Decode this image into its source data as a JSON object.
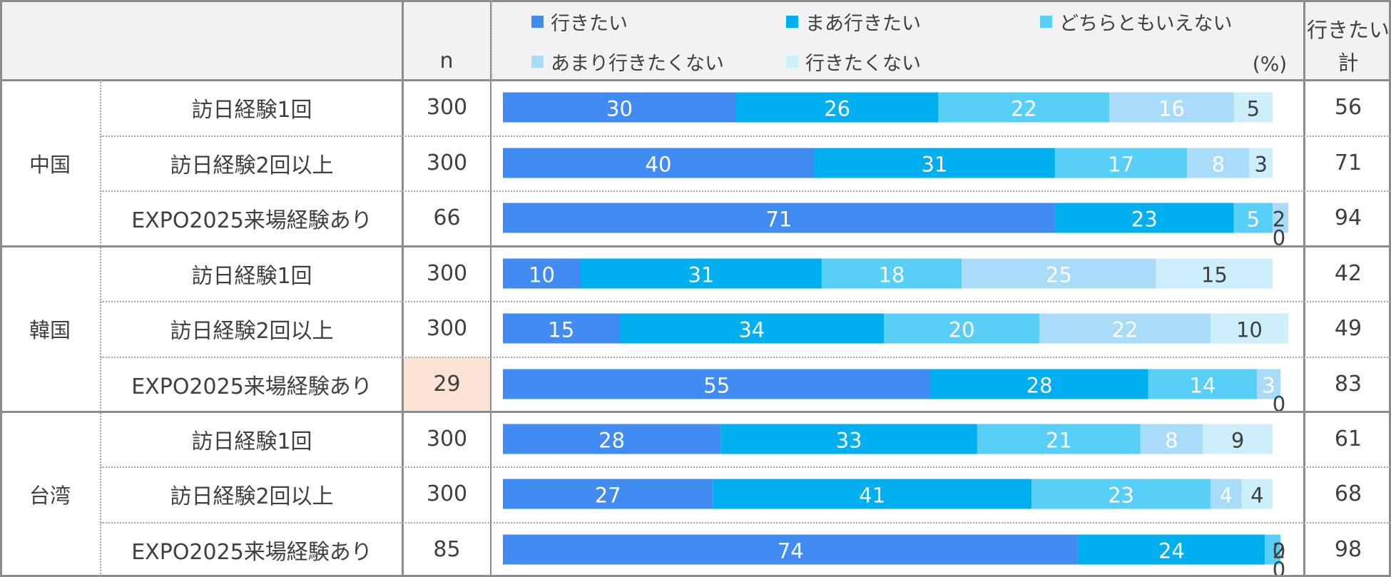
{
  "header": {
    "n_label": "n",
    "unit_label": "(%)",
    "total_label_line1": "行きたい",
    "total_label_line2": "計"
  },
  "legend": [
    {
      "label": "行きたい",
      "color": "#418cf2"
    },
    {
      "label": "まあ行きたい",
      "color": "#00aff0"
    },
    {
      "label": "どちらともいえない",
      "color": "#57cff6"
    },
    {
      "label": "あまり行きたくない",
      "color": "#a8dcf8"
    },
    {
      "label": "行きたくない",
      "color": "#cdeefb"
    }
  ],
  "groups": [
    {
      "country": "中国"
    },
    {
      "country": "韓国"
    },
    {
      "country": "台湾"
    }
  ],
  "rows": [
    {
      "label": "訪日経験1回",
      "n": "300",
      "total": "56",
      "highlight_n": false
    },
    {
      "label": "訪日経験2回以上",
      "n": "300",
      "total": "71",
      "highlight_n": false
    },
    {
      "label": "EXPO2025来場経験あり",
      "n": "66",
      "total": "94",
      "highlight_n": false
    },
    {
      "label": "訪日経験1回",
      "n": "300",
      "total": "42",
      "highlight_n": false
    },
    {
      "label": "訪日経験2回以上",
      "n": "300",
      "total": "49",
      "highlight_n": false
    },
    {
      "label": "EXPO2025来場経験あり",
      "n": "29",
      "total": "83",
      "highlight_n": true
    },
    {
      "label": "訪日経験1回",
      "n": "300",
      "total": "61",
      "highlight_n": false
    },
    {
      "label": "訪日経験2回以上",
      "n": "300",
      "total": "68",
      "highlight_n": false
    },
    {
      "label": "EXPO2025来場経験あり",
      "n": "85",
      "total": "98",
      "highlight_n": false
    }
  ],
  "chart_data": {
    "type": "bar",
    "orientation": "horizontal",
    "stacked": true,
    "unit": "(%)",
    "xlim": [
      0,
      100
    ],
    "categories": [
      "中国 訪日経験1回",
      "中国 訪日経験2回以上",
      "中国 EXPO2025来場経験あり",
      "韓国 訪日経験1回",
      "韓国 訪日経験2回以上",
      "韓国 EXPO2025来場経験あり",
      "台湾 訪日経験1回",
      "台湾 訪日経験2回以上",
      "台湾 EXPO2025来場経験あり"
    ],
    "series": [
      {
        "name": "行きたい",
        "color": "#418cf2",
        "label_color": "#ffffff",
        "values": [
          30,
          40,
          71,
          10,
          15,
          55,
          28,
          27,
          74
        ]
      },
      {
        "name": "まあ行きたい",
        "color": "#00aff0",
        "label_color": "#ffffff",
        "values": [
          26,
          31,
          23,
          31,
          34,
          28,
          33,
          41,
          24
        ]
      },
      {
        "name": "どちらともいえない",
        "color": "#57cff6",
        "label_color": "#ffffff",
        "values": [
          22,
          17,
          5,
          18,
          20,
          14,
          21,
          23,
          2
        ]
      },
      {
        "name": "あまり行きたくない",
        "color": "#a8dcf8",
        "label_color": "#ffffff",
        "values": [
          16,
          8,
          2,
          25,
          22,
          3,
          8,
          4,
          0
        ]
      },
      {
        "name": "行きたくない",
        "color": "#cdeefb",
        "label_color": "#404040",
        "values": [
          5,
          3,
          0,
          15,
          10,
          0,
          9,
          4,
          0
        ]
      }
    ],
    "grid": false,
    "legend_position": "top"
  }
}
